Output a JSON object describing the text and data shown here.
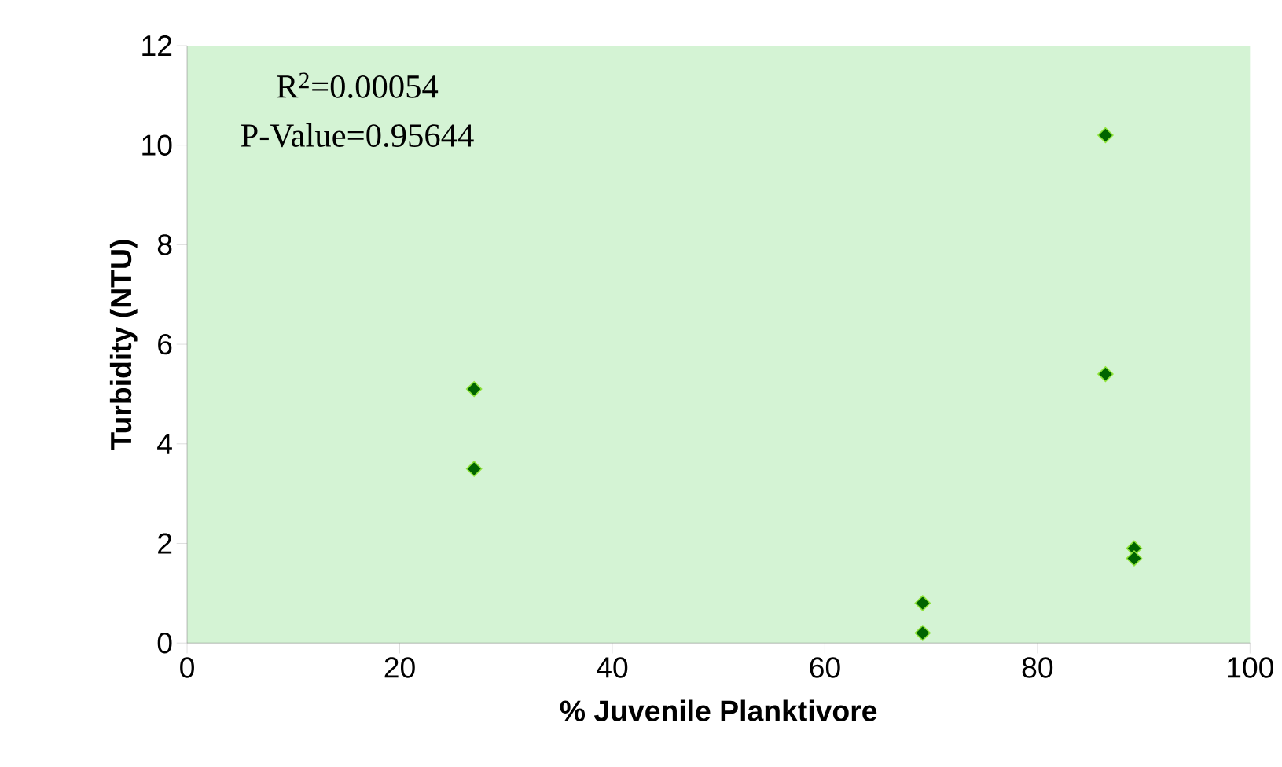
{
  "chart_data": {
    "type": "scatter",
    "x": [
      27,
      27,
      69.2,
      69.2,
      86.4,
      86.4,
      89.1,
      89.1
    ],
    "values": [
      5.1,
      3.5,
      0.8,
      0.2,
      10.2,
      5.4,
      1.9,
      1.7
    ],
    "color": "#006400",
    "xlabel": "% Juvenile Planktivore",
    "ylabel": "Turbidity (NTU)",
    "xlim": [
      0,
      100
    ],
    "ylim": [
      0,
      12
    ],
    "xticks": [
      0,
      20,
      40,
      60,
      80,
      100
    ],
    "yticks": [
      0,
      2,
      4,
      6,
      8,
      10,
      12
    ],
    "marker": "diamond",
    "grid": false,
    "annotations": [
      "R$^{2}$=0.00054",
      "P-Value=0.95644"
    ]
  }
}
